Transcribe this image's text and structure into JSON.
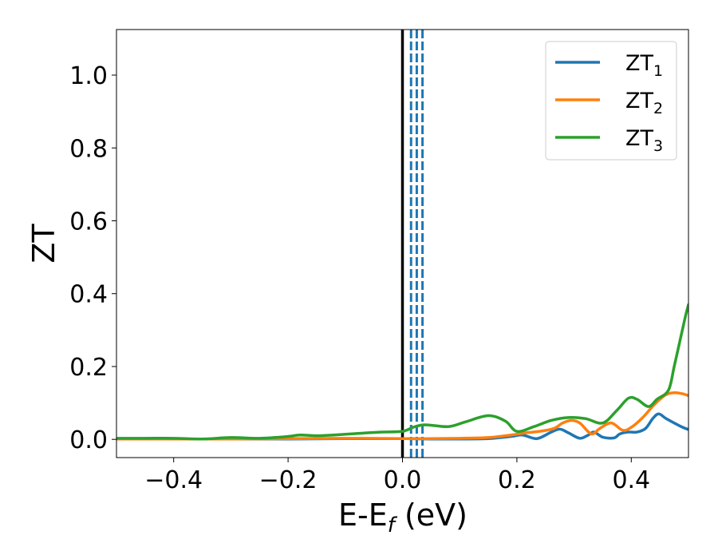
{
  "chart_data": {
    "type": "line",
    "xlabel": {
      "main": "E-E",
      "sub": "f",
      "rest": " (eV)"
    },
    "ylabel": "ZT",
    "xlim": [
      -0.5,
      0.5
    ],
    "ylim": [
      -0.05,
      1.125
    ],
    "xticks": [
      {
        "value": -0.4,
        "label": "−0.4"
      },
      {
        "value": -0.2,
        "label": "−0.2"
      },
      {
        "value": 0.0,
        "label": "0.0"
      },
      {
        "value": 0.2,
        "label": "0.2"
      },
      {
        "value": 0.4,
        "label": "0.4"
      }
    ],
    "yticks": [
      {
        "value": 0.0,
        "label": "0.0"
      },
      {
        "value": 0.2,
        "label": "0.2"
      },
      {
        "value": 0.4,
        "label": "0.4"
      },
      {
        "value": 0.6,
        "label": "0.6"
      },
      {
        "value": 0.8,
        "label": "0.8"
      },
      {
        "value": 1.0,
        "label": "1.0"
      }
    ],
    "grid": false,
    "legend_position": "top-right",
    "vertical_lines": [
      {
        "x": 0.0,
        "style": "solid",
        "color": "#000000"
      },
      {
        "x": 0.015,
        "style": "dashed",
        "color": "#1f77b4"
      },
      {
        "x": 0.025,
        "style": "dashed",
        "color": "#1f77b4"
      },
      {
        "x": 0.035,
        "style": "dashed",
        "color": "#1f77b4"
      }
    ],
    "series": [
      {
        "name": "ZT",
        "subscript": "1",
        "color": "#1f77b4",
        "points": [
          [
            -0.5,
            0.002
          ],
          [
            -0.4,
            0.001
          ],
          [
            -0.3,
            0.001
          ],
          [
            -0.2,
            0.001
          ],
          [
            -0.1,
            0.002
          ],
          [
            0.0,
            0.002
          ],
          [
            0.05,
            0.001
          ],
          [
            0.1,
            0.001
          ],
          [
            0.15,
            0.002
          ],
          [
            0.19,
            0.008
          ],
          [
            0.21,
            0.012
          ],
          [
            0.235,
            0.002
          ],
          [
            0.26,
            0.02
          ],
          [
            0.275,
            0.028
          ],
          [
            0.29,
            0.018
          ],
          [
            0.31,
            0.003
          ],
          [
            0.325,
            0.012
          ],
          [
            0.335,
            0.02
          ],
          [
            0.35,
            0.006
          ],
          [
            0.37,
            0.004
          ],
          [
            0.38,
            0.015
          ],
          [
            0.395,
            0.02
          ],
          [
            0.41,
            0.02
          ],
          [
            0.425,
            0.03
          ],
          [
            0.438,
            0.058
          ],
          [
            0.448,
            0.07
          ],
          [
            0.46,
            0.058
          ],
          [
            0.475,
            0.045
          ],
          [
            0.49,
            0.033
          ],
          [
            0.5,
            0.027
          ]
        ]
      },
      {
        "name": "ZT",
        "subscript": "2",
        "color": "#ff7f0e",
        "points": [
          [
            -0.5,
            0.001
          ],
          [
            -0.4,
            0.001
          ],
          [
            -0.3,
            0.001
          ],
          [
            -0.2,
            0.002
          ],
          [
            -0.1,
            0.003
          ],
          [
            0.0,
            0.002
          ],
          [
            0.05,
            0.002
          ],
          [
            0.1,
            0.003
          ],
          [
            0.15,
            0.005
          ],
          [
            0.19,
            0.012
          ],
          [
            0.215,
            0.018
          ],
          [
            0.24,
            0.022
          ],
          [
            0.265,
            0.03
          ],
          [
            0.28,
            0.045
          ],
          [
            0.295,
            0.052
          ],
          [
            0.31,
            0.045
          ],
          [
            0.33,
            0.015
          ],
          [
            0.345,
            0.03
          ],
          [
            0.365,
            0.045
          ],
          [
            0.385,
            0.025
          ],
          [
            0.4,
            0.033
          ],
          [
            0.42,
            0.06
          ],
          [
            0.44,
            0.095
          ],
          [
            0.46,
            0.122
          ],
          [
            0.475,
            0.128
          ],
          [
            0.49,
            0.125
          ],
          [
            0.5,
            0.12
          ]
        ]
      },
      {
        "name": "ZT",
        "subscript": "3",
        "color": "#2ca02c",
        "points": [
          [
            -0.5,
            0.003
          ],
          [
            -0.45,
            0.003
          ],
          [
            -0.4,
            0.003
          ],
          [
            -0.35,
            0.001
          ],
          [
            -0.3,
            0.005
          ],
          [
            -0.25,
            0.003
          ],
          [
            -0.2,
            0.008
          ],
          [
            -0.18,
            0.012
          ],
          [
            -0.15,
            0.01
          ],
          [
            -0.12,
            0.012
          ],
          [
            -0.08,
            0.016
          ],
          [
            -0.04,
            0.02
          ],
          [
            0.0,
            0.022
          ],
          [
            0.02,
            0.034
          ],
          [
            0.04,
            0.04
          ],
          [
            0.08,
            0.035
          ],
          [
            0.11,
            0.048
          ],
          [
            0.15,
            0.065
          ],
          [
            0.18,
            0.05
          ],
          [
            0.2,
            0.022
          ],
          [
            0.23,
            0.035
          ],
          [
            0.26,
            0.052
          ],
          [
            0.29,
            0.06
          ],
          [
            0.32,
            0.057
          ],
          [
            0.35,
            0.045
          ],
          [
            0.375,
            0.08
          ],
          [
            0.395,
            0.113
          ],
          [
            0.41,
            0.11
          ],
          [
            0.43,
            0.09
          ],
          [
            0.445,
            0.11
          ],
          [
            0.465,
            0.135
          ],
          [
            0.475,
            0.2
          ],
          [
            0.485,
            0.27
          ],
          [
            0.495,
            0.34
          ],
          [
            0.5,
            0.37
          ]
        ]
      }
    ]
  }
}
